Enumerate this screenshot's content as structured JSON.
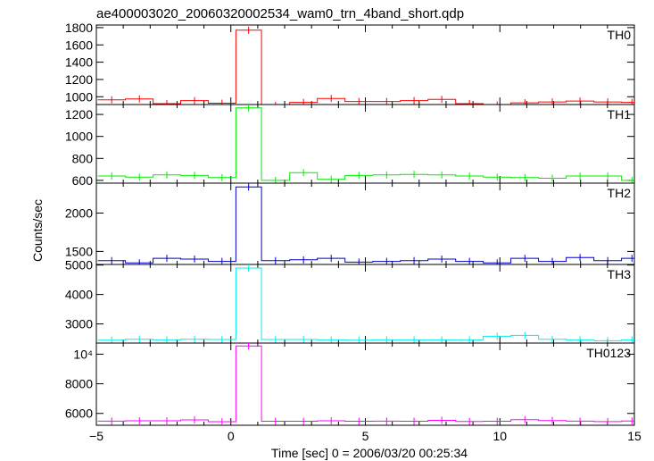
{
  "chart_data": {
    "type": "line",
    "style": "step-histogram-with-error-bars",
    "title": "ae400003020_20060320002534_wam0_trn_4band_short.qdp",
    "xlabel": "Time [sec] 0 = 2006/03/20 00:25:34",
    "ylabel": "Counts/sec",
    "xlim": [
      -5,
      15
    ],
    "x_ticks": [
      -5,
      0,
      5,
      10,
      15
    ],
    "x_tick_labels": [
      "−5",
      "0",
      "5",
      "10",
      "15"
    ],
    "bin_edges": [
      -4.948,
      -3.92,
      -2.89,
      -1.866,
      -0.84,
      0.188,
      1.14,
      2.187,
      3.215,
      4.243,
      5.271,
      6.299,
      7.327,
      8.355,
      9.383,
      10.411,
      11.439,
      12.467,
      13.495,
      14.523,
      15.3
    ],
    "x": [
      -4.43,
      -3.4,
      -2.38,
      -1.35,
      -0.33,
      0.66,
      1.66,
      2.7,
      3.73,
      4.76,
      5.79,
      6.81,
      7.84,
      8.87,
      9.9,
      10.93,
      11.95,
      12.98,
      14.01,
      14.91
    ],
    "panels": [
      {
        "name": "TH0",
        "color": "#ff0000",
        "ylim": [
          910,
          1830
        ],
        "y_ticks": [
          1000,
          1200,
          1400,
          1600,
          1800
        ],
        "y_tick_labels": [
          "1000",
          "1200",
          "1400",
          "1600",
          "1800"
        ],
        "values": [
          965,
          975,
          920,
          955,
          925,
          1770,
          900,
          935,
          980,
          945,
          945,
          955,
          970,
          920,
          905,
          930,
          940,
          950,
          940,
          935
        ]
      },
      {
        "name": "TH1",
        "color": "#00ee00",
        "ylim": [
          575,
          1290
        ],
        "y_ticks": [
          600,
          800,
          1000,
          1200
        ],
        "y_tick_labels": [
          "600",
          "800",
          "1000",
          "1200"
        ],
        "values": [
          640,
          630,
          650,
          645,
          625,
          1260,
          600,
          670,
          610,
          645,
          650,
          655,
          650,
          640,
          630,
          625,
          620,
          640,
          640,
          600
        ]
      },
      {
        "name": "TH2",
        "color": "#0000cc",
        "ylim": [
          1330,
          2390
        ],
        "y_ticks": [
          1500,
          2000
        ],
        "y_tick_labels": [
          "1500",
          "2000"
        ],
        "values": [
          1380,
          1350,
          1410,
          1400,
          1370,
          2340,
          1380,
          1390,
          1410,
          1360,
          1370,
          1380,
          1400,
          1370,
          1350,
          1410,
          1370,
          1420,
          1380,
          1410
        ]
      },
      {
        "name": "TH3",
        "color": "#00eeee",
        "ylim": [
          2350,
          5020
        ],
        "y_ticks": [
          3000,
          4000,
          5000
        ],
        "y_tick_labels": [
          "3000",
          "4000",
          "5000"
        ],
        "values": [
          2450,
          2480,
          2460,
          2480,
          2470,
          4900,
          2470,
          2470,
          2460,
          2450,
          2460,
          2460,
          2460,
          2460,
          2580,
          2610,
          2480,
          2460,
          2430,
          2460
        ]
      },
      {
        "name": "TH0123",
        "color": "#ff00ff",
        "ylim": [
          5200,
          10750
        ],
        "y_ticks": [
          6000,
          8000,
          10000
        ],
        "y_tick_labels": [
          "6000",
          "8000",
          "10⁴"
        ],
        "values": [
          5480,
          5500,
          5500,
          5560,
          5440,
          10550,
          5470,
          5470,
          5500,
          5470,
          5480,
          5470,
          5530,
          5460,
          5470,
          5580,
          5520,
          5480,
          5450,
          5490
        ]
      }
    ],
    "grid": false,
    "legend": "panel labels at top-right of each panel"
  }
}
